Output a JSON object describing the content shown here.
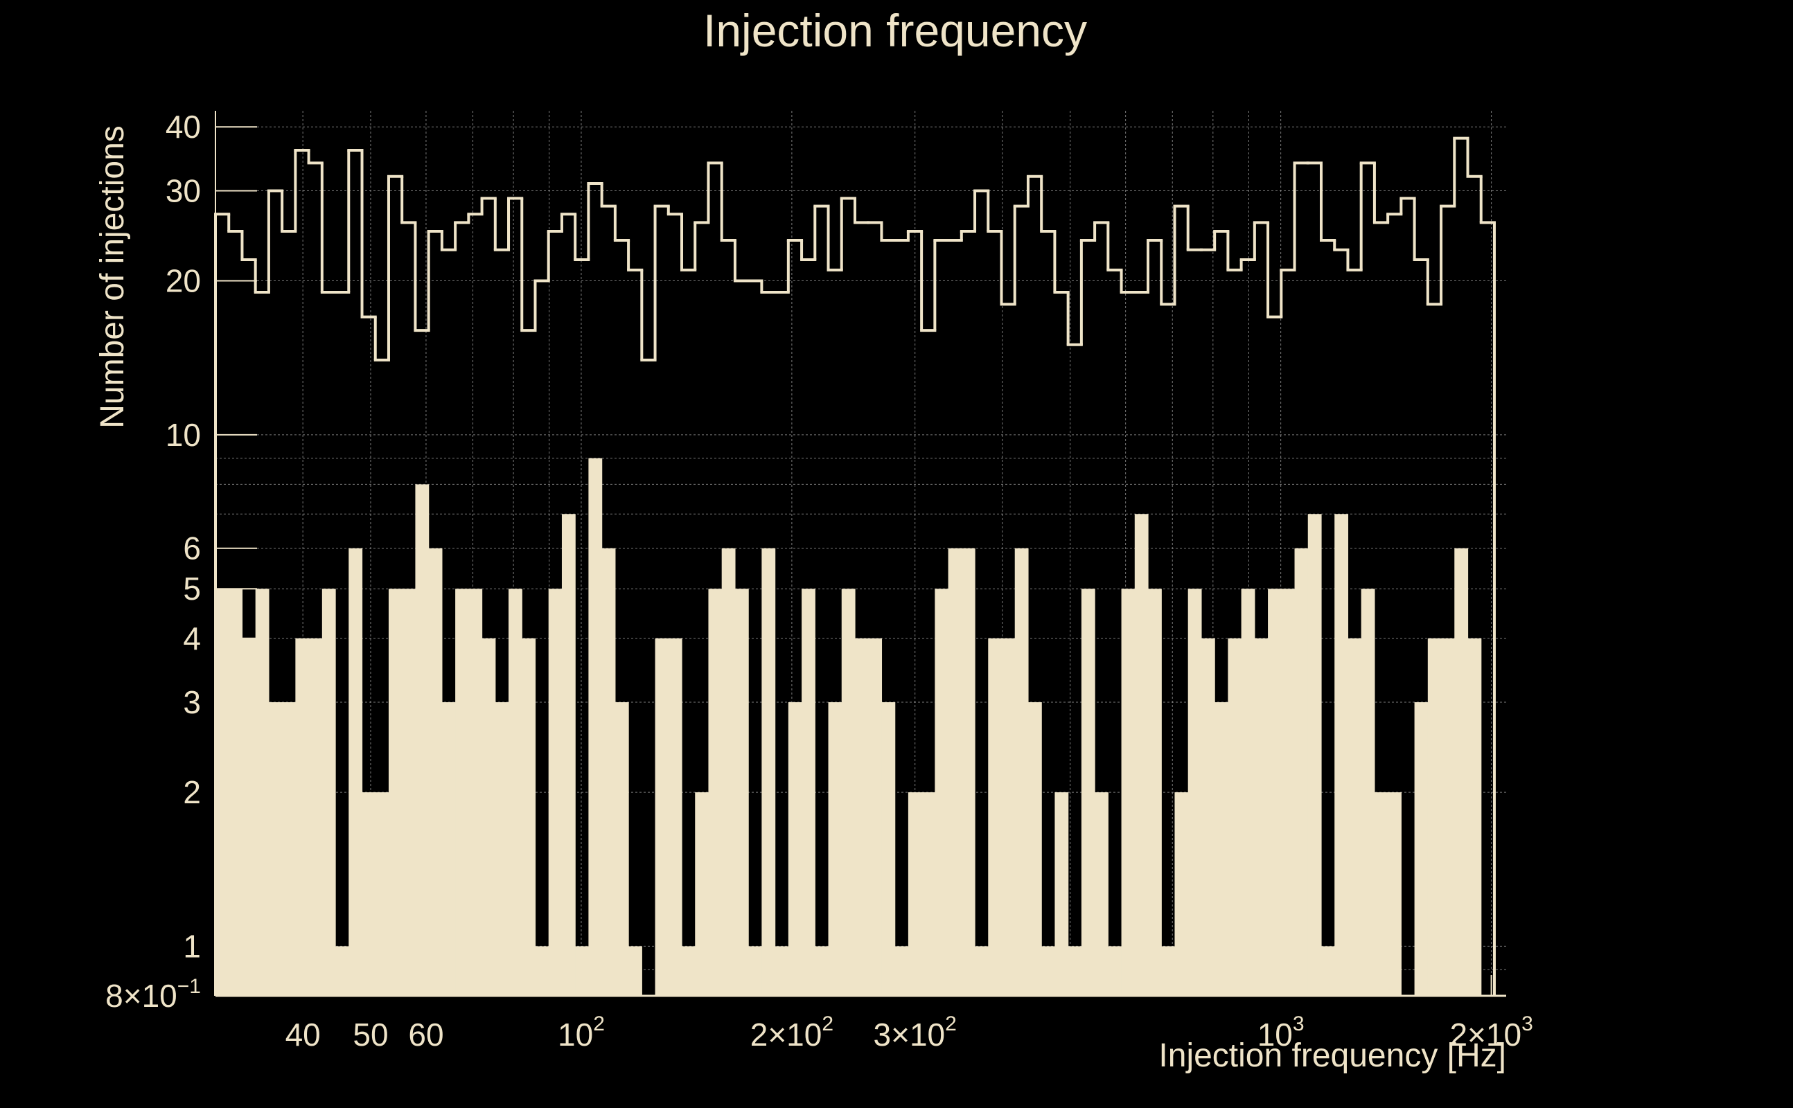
{
  "colors": {
    "background": "#000000",
    "foreground": "#efe4c8",
    "grid": "#9a9a9a"
  },
  "chart_data": {
    "type": "bar",
    "title": "Injection frequency",
    "xlabel": "Injection frequency [Hz]",
    "ylabel": "Number of injections",
    "x_scale": "log",
    "y_scale": "log",
    "xlim": [
      30,
      2100
    ],
    "ylim": [
      0.8,
      43
    ],
    "grid": true,
    "x_ticks": [
      {
        "value": 40,
        "base": "40",
        "exp": ""
      },
      {
        "value": 50,
        "base": "50",
        "exp": ""
      },
      {
        "value": 60,
        "base": "60",
        "exp": ""
      },
      {
        "value": 100,
        "base": "10",
        "exp": "2"
      },
      {
        "value": 200,
        "base": "2×10",
        "exp": "2"
      },
      {
        "value": 300,
        "base": "3×10",
        "exp": "2"
      },
      {
        "value": 1000,
        "base": "10",
        "exp": "3"
      },
      {
        "value": 2000,
        "base": "2×10",
        "exp": "3"
      }
    ],
    "y_ticks": [
      {
        "value": 0.8,
        "base": "8×10",
        "exp": "−1"
      },
      {
        "value": 1,
        "base": "1",
        "exp": ""
      },
      {
        "value": 2,
        "base": "2",
        "exp": ""
      },
      {
        "value": 3,
        "base": "3",
        "exp": ""
      },
      {
        "value": 4,
        "base": "4",
        "exp": ""
      },
      {
        "value": 5,
        "base": "5",
        "exp": ""
      },
      {
        "value": 6,
        "base": "6",
        "exp": ""
      },
      {
        "value": 10,
        "base": "10",
        "exp": ""
      },
      {
        "value": 20,
        "base": "20",
        "exp": ""
      },
      {
        "value": 30,
        "base": "30",
        "exp": ""
      },
      {
        "value": 40,
        "base": "40",
        "exp": ""
      }
    ],
    "bin_range_hz": [
      30,
      2020
    ],
    "series": [
      {
        "style": "step-line",
        "values": [
          27,
          25,
          22,
          19,
          30,
          25,
          36,
          34,
          19,
          19,
          36,
          17,
          14,
          32,
          26,
          16,
          25,
          23,
          26,
          27,
          29,
          23,
          29,
          16,
          20,
          25,
          27,
          22,
          31,
          28,
          24,
          21,
          14,
          28,
          27,
          21,
          26,
          34,
          24,
          20,
          20,
          19,
          19,
          24,
          22,
          28,
          21,
          29,
          26,
          26,
          24,
          24,
          25,
          16,
          24,
          24,
          25,
          30,
          25,
          18,
          28,
          32,
          25,
          19,
          15,
          24,
          26,
          21,
          19,
          19,
          24,
          18,
          28,
          23,
          23,
          25,
          21,
          22,
          26,
          17,
          21,
          34,
          34,
          24,
          23,
          21,
          34,
          26,
          27,
          29,
          22,
          18,
          28,
          38,
          32,
          26
        ]
      },
      {
        "style": "filled",
        "values": [
          5,
          5,
          4,
          5,
          3,
          3,
          4,
          4,
          5,
          1,
          6,
          2,
          2,
          5,
          5,
          8,
          6,
          3,
          5,
          5,
          4,
          3,
          5,
          4,
          1,
          5,
          7,
          1,
          9,
          6,
          3,
          1,
          0,
          4,
          4,
          1,
          2,
          5,
          6,
          5,
          1,
          6,
          1,
          3,
          5,
          1,
          3,
          5,
          4,
          4,
          3,
          1,
          2,
          2,
          5,
          6,
          6,
          1,
          4,
          4,
          6,
          3,
          1,
          2,
          1,
          5,
          2,
          1,
          5,
          7,
          5,
          1,
          2,
          5,
          4,
          3,
          4,
          5,
          4,
          5,
          5,
          6,
          7,
          1,
          7,
          4,
          5,
          2,
          2,
          0,
          3,
          4,
          4,
          6,
          4,
          0
        ]
      }
    ]
  }
}
